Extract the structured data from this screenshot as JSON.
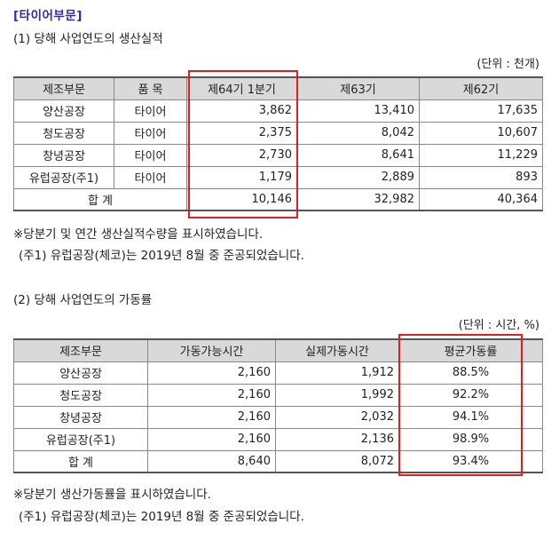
{
  "section_title": "[타이어부문]",
  "production": {
    "heading": "(1) 당해 사업연도의 생산실적",
    "unit": "(단위 : 천개)",
    "headers": [
      "제조부문",
      "품 목",
      "제64기 1분기",
      "제63기",
      "제62기"
    ],
    "rows": [
      [
        "양산공장",
        "타이어",
        "3,862",
        "13,410",
        "17,635"
      ],
      [
        "청도공장",
        "타이어",
        "2,375",
        "8,042",
        "10,607"
      ],
      [
        "창녕공장",
        "타이어",
        "2,730",
        "8,641",
        "11,229"
      ],
      [
        "유럽공장(주1)",
        "타이어",
        "1,179",
        "2,889",
        "893"
      ]
    ],
    "total": {
      "label": "합 계",
      "values": [
        "10,146",
        "32,982",
        "40,364"
      ]
    },
    "note1": "※당분기 및 연간 생산실적수량을 표시하였습니다.",
    "note2": "(주1) 유럽공장(체코)는 2019년 8월 중 준공되었습니다."
  },
  "utilization": {
    "heading": "(2) 당해 사업연도의 가동률",
    "unit": "(단위 : 시간, %)",
    "headers": [
      "제조부문",
      "가동가능시간",
      "실제가동시간",
      "평균가동률"
    ],
    "rows": [
      [
        "양산공장",
        "2,160",
        "1,912",
        "88.5%"
      ],
      [
        "청도공장",
        "2,160",
        "1,992",
        "92.2%"
      ],
      [
        "창녕공장",
        "2,160",
        "2,032",
        "94.1%"
      ],
      [
        "유럽공장(주1)",
        "2,160",
        "2,136",
        "98.9%"
      ]
    ],
    "total": {
      "label": "합 계",
      "values": [
        "8,640",
        "8,072",
        "93.4%"
      ]
    },
    "note1": "※당분기 생산가동률을 표시하였습니다.",
    "note2": "(주1) 유럽공장(체코)는 2019년 8월 중 준공되었습니다."
  },
  "colors": {
    "title": "#2b2bb5",
    "highlight": "#e02020",
    "header_bg": "#d9d9d9"
  }
}
